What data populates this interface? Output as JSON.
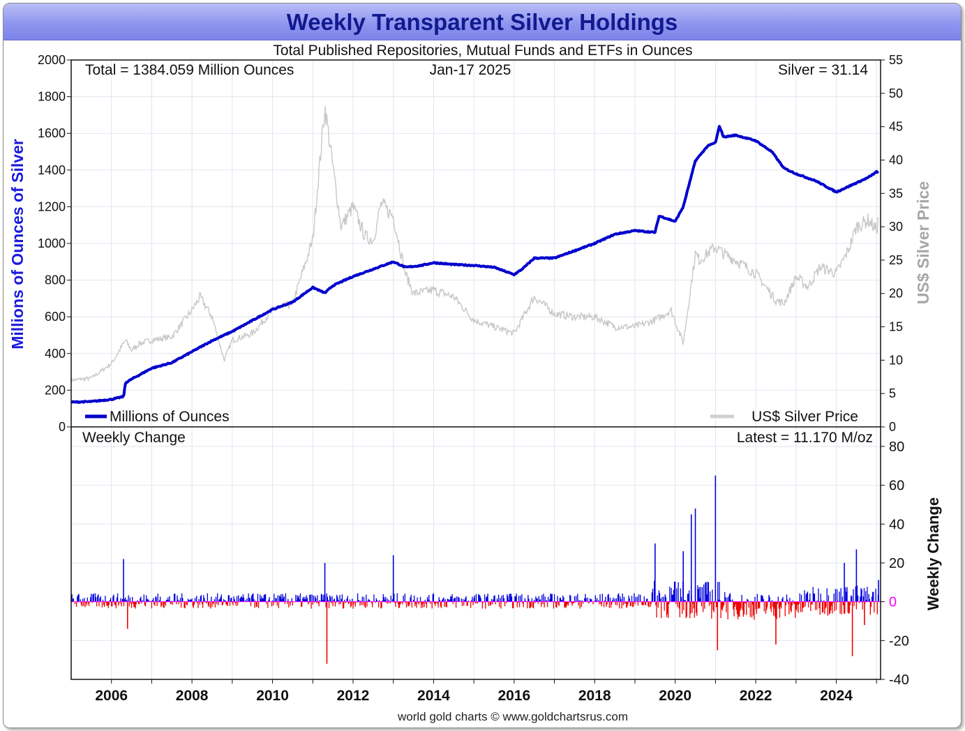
{
  "title": "Weekly Transparent Silver Holdings",
  "subtitle": "Total Published Repositories, Mutual Funds and ETFs in Ounces",
  "total_text": "Total = 1384.059 Million Ounces",
  "date_text": "Jan-17  2025",
  "silver_text": "Silver = 31.14",
  "weekly_change_text": "Weekly Change",
  "latest_text": "Latest = 11.170 M/oz",
  "legend_holdings": "Millions of Ounces",
  "legend_price": "US$ Silver Price",
  "y_left_label": "Millions of Ounces of Silver",
  "y_right_label": "US$ Silver Price",
  "y_right_lower_label": "Weekly Change",
  "footer": "world gold charts © www.goldchartsrus.com",
  "colors": {
    "holdings": "#0000cc",
    "price": "#c8c8c8",
    "positive": "#0000dd",
    "negative": "#ee0000",
    "zero_line": "#ff00ff",
    "title": "#111a8e"
  },
  "chart_data": [
    {
      "type": "line",
      "title": "Weekly Transparent Silver Holdings",
      "subtitle": "Total Published Repositories, Mutual Funds and ETFs in Ounces",
      "ylabel": "Millions of Ounces of Silver",
      "ylabel_right": "US$ Silver Price",
      "xlim": [
        2005.0,
        2025.1
      ],
      "ylim": [
        0,
        2000
      ],
      "ylim_right": [
        0,
        55
      ],
      "x_ticks": [
        "2006",
        "2008",
        "2010",
        "2012",
        "2014",
        "2016",
        "2018",
        "2020",
        "2022",
        "2024"
      ],
      "y_ticks": [
        0,
        200,
        400,
        600,
        800,
        1000,
        1200,
        1400,
        1600,
        1800,
        2000
      ],
      "y_ticks_right": [
        0,
        5,
        10,
        15,
        20,
        25,
        30,
        35,
        40,
        45,
        50,
        55
      ],
      "grid": true,
      "series": [
        {
          "name": "Millions of Ounces",
          "axis": "left",
          "x": [
            2005.0,
            2005.5,
            2006.0,
            2006.3,
            2006.35,
            2006.5,
            2007.0,
            2007.5,
            2008.0,
            2008.5,
            2009.0,
            2009.5,
            2010.0,
            2010.5,
            2011.0,
            2011.3,
            2011.5,
            2011.7,
            2012.0,
            2012.5,
            2013.0,
            2013.3,
            2013.7,
            2014.0,
            2014.5,
            2015.0,
            2015.5,
            2016.0,
            2016.2,
            2016.5,
            2017.0,
            2017.5,
            2018.0,
            2018.5,
            2019.0,
            2019.5,
            2019.6,
            2020.0,
            2020.2,
            2020.5,
            2020.8,
            2021.0,
            2021.1,
            2021.2,
            2021.5,
            2022.0,
            2022.4,
            2022.7,
            2023.0,
            2023.5,
            2024.0,
            2024.2,
            2024.5,
            2024.8,
            2025.0,
            2025.05
          ],
          "values": [
            135,
            138,
            150,
            165,
            240,
            260,
            320,
            350,
            410,
            470,
            520,
            580,
            640,
            680,
            760,
            730,
            770,
            790,
            820,
            860,
            900,
            870,
            880,
            895,
            885,
            880,
            870,
            830,
            860,
            920,
            920,
            960,
            1000,
            1050,
            1070,
            1060,
            1150,
            1120,
            1200,
            1450,
            1530,
            1550,
            1640,
            1580,
            1590,
            1560,
            1500,
            1410,
            1380,
            1340,
            1280,
            1300,
            1330,
            1360,
            1390,
            1384
          ]
        },
        {
          "name": "US$ Silver Price",
          "axis": "right",
          "x": [
            2005.0,
            2005.5,
            2006.0,
            2006.35,
            2006.5,
            2006.7,
            2007.0,
            2007.5,
            2008.0,
            2008.2,
            2008.5,
            2008.8,
            2009.0,
            2009.5,
            2010.0,
            2010.5,
            2011.0,
            2011.3,
            2011.5,
            2011.7,
            2012.0,
            2012.3,
            2012.5,
            2012.7,
            2013.0,
            2013.3,
            2013.5,
            2014.0,
            2014.5,
            2015.0,
            2015.5,
            2016.0,
            2016.5,
            2017.0,
            2017.5,
            2018.0,
            2018.5,
            2019.0,
            2019.5,
            2019.9,
            2020.2,
            2020.5,
            2020.6,
            2021.0,
            2021.2,
            2021.5,
            2022.0,
            2022.5,
            2022.7,
            2023.0,
            2023.3,
            2023.6,
            2024.0,
            2024.3,
            2024.5,
            2024.8,
            2025.0,
            2025.05
          ],
          "values": [
            7.0,
            7.3,
            9.5,
            13.0,
            11.5,
            12.5,
            13.0,
            13.5,
            17.5,
            19.5,
            16.5,
            10.0,
            13.0,
            14.0,
            17.5,
            18.5,
            28.0,
            48.0,
            39.0,
            30.0,
            33.0,
            28.5,
            28.0,
            33.5,
            31.5,
            23.0,
            20.0,
            20.5,
            19.5,
            16.0,
            15.0,
            14.0,
            19.5,
            17.0,
            16.5,
            16.5,
            15.0,
            15.0,
            16.0,
            17.5,
            12.5,
            26.0,
            25.0,
            27.0,
            26.0,
            25.0,
            23.0,
            19.0,
            18.5,
            22.5,
            21.0,
            24.0,
            23.0,
            26.5,
            30.0,
            31.0,
            29.5,
            31.14
          ]
        }
      ]
    },
    {
      "type": "bar",
      "title": "Weekly Change",
      "ylabel_right": "Weekly Change",
      "ylim": [
        -40,
        80
      ],
      "y_ticks": [
        -40,
        -20,
        0,
        20,
        40,
        60,
        80
      ],
      "latest": 11.17,
      "grid": true,
      "notable_bars": {
        "x": [
          2006.3,
          2006.4,
          2011.3,
          2011.35,
          2013.0,
          2019.5,
          2020.2,
          2020.4,
          2020.5,
          2021.0,
          2021.05,
          2022.5,
          2024.2,
          2024.4,
          2024.5,
          2024.7,
          2025.05
        ],
        "values": [
          22,
          -14,
          20,
          -32,
          24,
          30,
          26,
          45,
          48,
          65,
          -25,
          -22,
          20,
          -28,
          27,
          -12,
          11.17
        ]
      }
    }
  ]
}
